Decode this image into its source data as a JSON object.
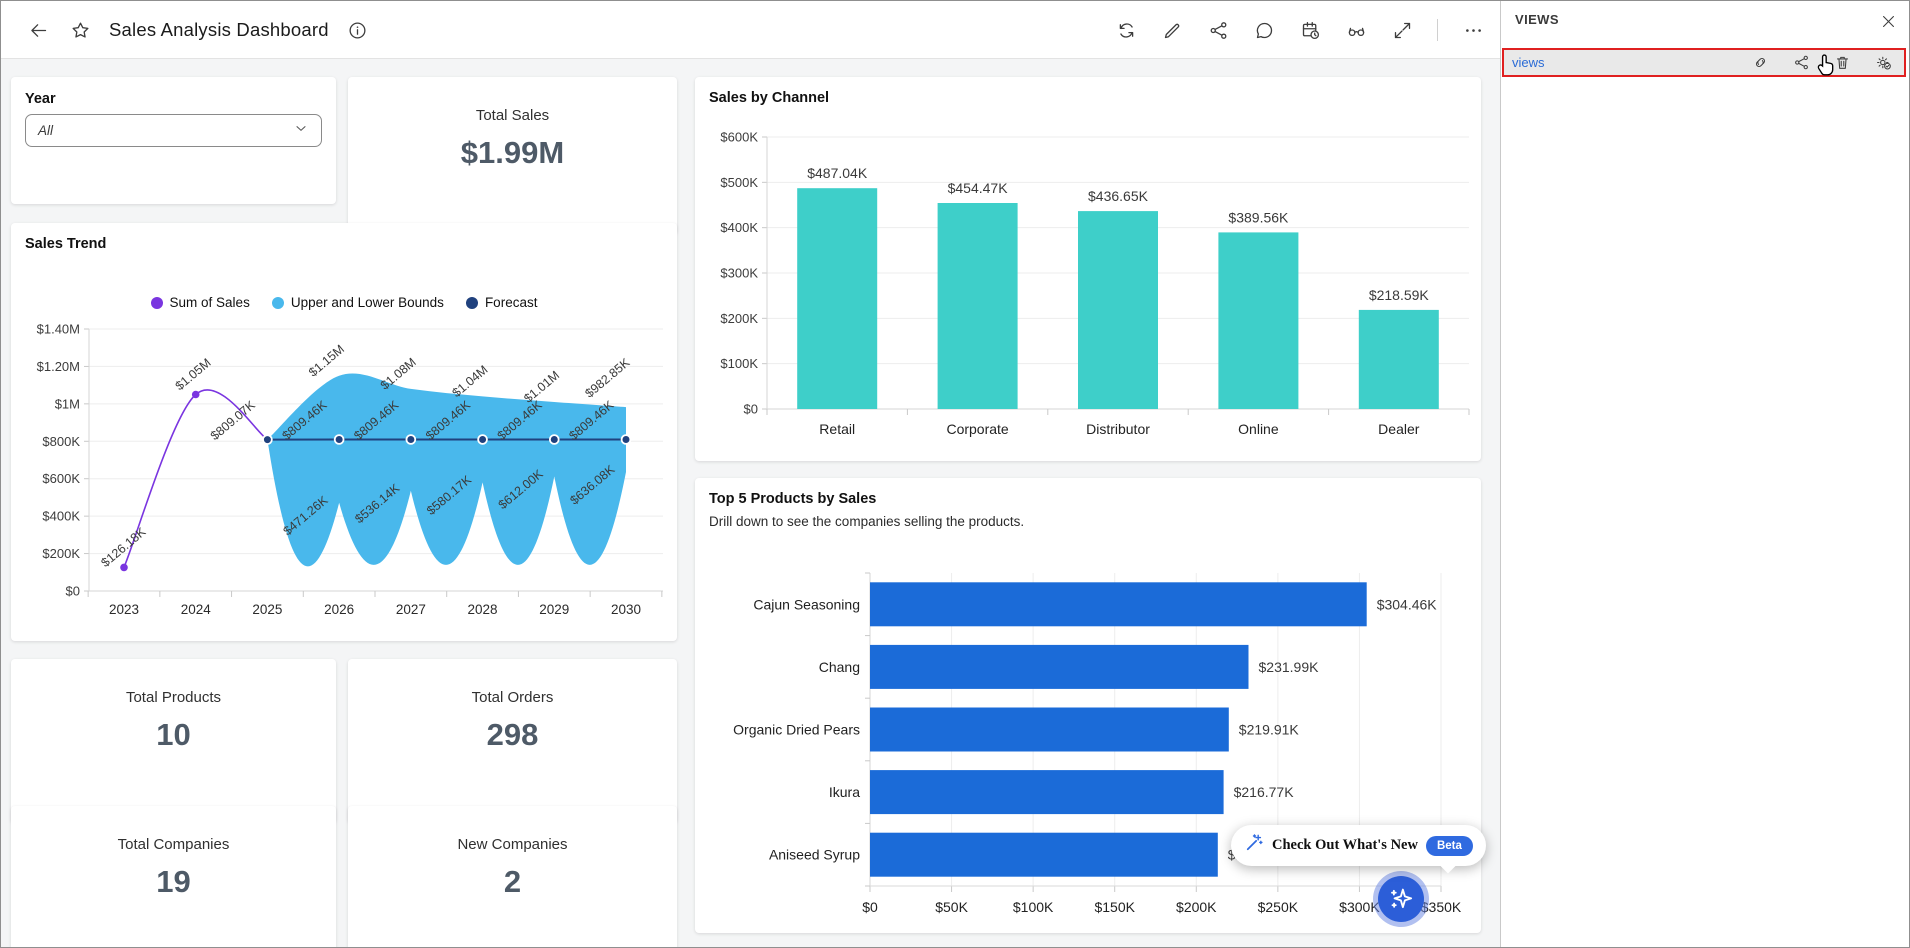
{
  "header": {
    "title": "Sales Analysis Dashboard",
    "toolbar": [
      "refresh",
      "edit",
      "share",
      "comment",
      "schedule",
      "view-as",
      "fullscreen",
      "more"
    ]
  },
  "views_panel": {
    "title": "VIEWS",
    "items": [
      {
        "label": "views",
        "actions": [
          "link",
          "share",
          "delete",
          "settings"
        ]
      }
    ]
  },
  "filters": {
    "year_label": "Year",
    "year_value": "All"
  },
  "kpis": [
    {
      "label": "Total Sales",
      "value": "$1.99M"
    },
    {
      "label": "Total Products",
      "value": "10"
    },
    {
      "label": "Total Orders",
      "value": "298"
    },
    {
      "label": "Total Companies",
      "value": "19"
    },
    {
      "label": "New Companies",
      "value": "2"
    }
  ],
  "whats_new": {
    "label": "Check Out What's New",
    "badge": "Beta"
  },
  "colors": {
    "accent_blue": "#2F6AE0",
    "bar_teal": "#3ECFC9",
    "bar_blue": "#1B6BD8",
    "line_purple": "#7A35E0",
    "band_blue": "#49B8EC",
    "forecast_navy": "#20417E",
    "highlight_red": "#E02020"
  },
  "chart_data": [
    {
      "type": "line",
      "title": "Sales Trend",
      "x": [
        "2023",
        "2024",
        "2025",
        "2026",
        "2027",
        "2028",
        "2029",
        "2030"
      ],
      "ylim": [
        0,
        1400000
      ],
      "ytick_labels": [
        "$0",
        "$200K",
        "$400K",
        "$600K",
        "$800K",
        "$1M",
        "$1.20M",
        "$1.40M"
      ],
      "legend_position": "top",
      "grid": true,
      "series": [
        {
          "name": "Sum of Sales",
          "color": "#7A35E0",
          "x": [
            "2023",
            "2024",
            "2025"
          ],
          "values": [
            126180,
            1050000,
            809070
          ],
          "labels": [
            "$126.18K",
            "$1.05M",
            "$809.07K"
          ]
        },
        {
          "name": "Upper and Lower Bounds",
          "color": "#49B8EC",
          "band": true,
          "x": [
            "2025",
            "2026",
            "2027",
            "2028",
            "2029",
            "2030"
          ],
          "upper": [
            809070,
            1150000,
            1080000,
            1040000,
            1010000,
            982850
          ],
          "lower": [
            809070,
            471260,
            536140,
            580170,
            612000,
            636080
          ],
          "upper_labels": [
            "",
            "$1.15M",
            "$1.08M",
            "$1.04M",
            "$1.01M",
            "$982.85K"
          ],
          "lower_labels": [
            "",
            "$471.26K",
            "$536.14K",
            "$580.17K",
            "$612.00K",
            "$636.08K"
          ]
        },
        {
          "name": "Forecast",
          "color": "#20417E",
          "x": [
            "2025",
            "2026",
            "2027",
            "2028",
            "2029",
            "2030"
          ],
          "values": [
            809070,
            809460,
            809460,
            809460,
            809460,
            809460
          ],
          "labels": [
            "",
            "$809.46K",
            "$809.46K",
            "$809.46K",
            "$809.46K",
            "$809.46K"
          ]
        }
      ]
    },
    {
      "type": "bar",
      "title": "Sales by Channel",
      "categories": [
        "Retail",
        "Corporate",
        "Distributor",
        "Online",
        "Dealer"
      ],
      "values": [
        487040,
        454470,
        436650,
        389560,
        218590
      ],
      "labels": [
        "$487.04K",
        "$454.47K",
        "$436.65K",
        "$389.56K",
        "$218.59K"
      ],
      "ylim": [
        0,
        600000
      ],
      "ytick_labels": [
        "$0",
        "$100K",
        "$200K",
        "$300K",
        "$400K",
        "$500K",
        "$600K"
      ],
      "bar_color": "#3ECFC9",
      "grid": true
    },
    {
      "type": "bar-horizontal",
      "title": "Top 5 Products by Sales",
      "subtitle": "Drill down to see the companies selling the products.",
      "categories": [
        "Cajun Seasoning",
        "Chang",
        "Organic Dried Pears",
        "Ikura",
        "Aniseed Syrup"
      ],
      "values": [
        304460,
        231990,
        219910,
        216770,
        213200
      ],
      "labels": [
        "$304.46K",
        "$231.99K",
        "$219.91K",
        "$216.77K",
        "$213.20K"
      ],
      "xlim": [
        0,
        350000
      ],
      "xtick_labels": [
        "$0",
        "$50K",
        "$100K",
        "$150K",
        "$200K",
        "$250K",
        "$300K",
        "$350K"
      ],
      "bar_color": "#1B6BD8",
      "grid": true
    }
  ]
}
